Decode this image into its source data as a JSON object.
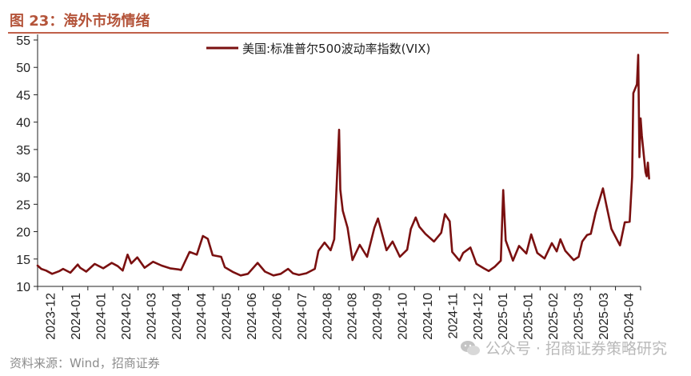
{
  "figure_title": "图 23：海外市场情绪",
  "source_note": "资料来源：Wind，招商证券",
  "watermark": "公众号 · 招商证券策略研究",
  "colors": {
    "title": "#b4543a",
    "line": "#7a1010",
    "rule": "#c0604a",
    "axis": "#222222"
  },
  "chart_data": {
    "type": "line",
    "legend_position": "top-center",
    "grid": false,
    "ylim": [
      10,
      55
    ],
    "yticks": [
      10,
      15,
      20,
      25,
      30,
      35,
      40,
      45,
      50,
      55
    ],
    "xticks": [
      "2023-12",
      "2024-01",
      "2024-01",
      "2024-02",
      "2024-03",
      "2024-04",
      "2024-04",
      "2024-05",
      "2024-06",
      "2024-06",
      "2024-07",
      "2024-08",
      "2024-08",
      "2024-09",
      "2024-10",
      "2024-10",
      "2024-11",
      "2024-12",
      "2025-01",
      "2025-01",
      "2025-02",
      "2025-03",
      "2025-03",
      "2025-04"
    ],
    "x_start": "2023-12-01",
    "x_end": "2025-04-10",
    "series": [
      {
        "name": "美国:标准普尔500波动率指数(VIX)",
        "points": [
          [
            "2023-12-01",
            13.8
          ],
          [
            "2023-12-04",
            13.2
          ],
          [
            "2023-12-08",
            12.9
          ],
          [
            "2023-12-13",
            12.3
          ],
          [
            "2023-12-19",
            12.8
          ],
          [
            "2023-12-22",
            13.2
          ],
          [
            "2023-12-28",
            12.5
          ],
          [
            "2024-01-03",
            14.0
          ],
          [
            "2024-01-05",
            13.4
          ],
          [
            "2024-01-10",
            12.7
          ],
          [
            "2024-01-17",
            14.1
          ],
          [
            "2024-01-24",
            13.3
          ],
          [
            "2024-01-31",
            14.3
          ],
          [
            "2024-02-05",
            13.7
          ],
          [
            "2024-02-09",
            12.9
          ],
          [
            "2024-02-13",
            15.8
          ],
          [
            "2024-02-16",
            14.2
          ],
          [
            "2024-02-21",
            15.3
          ],
          [
            "2024-02-27",
            13.4
          ],
          [
            "2024-03-05",
            14.5
          ],
          [
            "2024-03-12",
            13.8
          ],
          [
            "2024-03-19",
            13.3
          ],
          [
            "2024-03-26",
            13.1
          ],
          [
            "2024-03-28",
            13.0
          ],
          [
            "2024-04-04",
            16.3
          ],
          [
            "2024-04-10",
            15.8
          ],
          [
            "2024-04-15",
            19.2
          ],
          [
            "2024-04-19",
            18.7
          ],
          [
            "2024-04-23",
            15.7
          ],
          [
            "2024-04-30",
            15.4
          ],
          [
            "2024-05-03",
            13.5
          ],
          [
            "2024-05-10",
            12.6
          ],
          [
            "2024-05-16",
            12.0
          ],
          [
            "2024-05-22",
            12.3
          ],
          [
            "2024-05-30",
            14.3
          ],
          [
            "2024-06-05",
            12.7
          ],
          [
            "2024-06-12",
            12.0
          ],
          [
            "2024-06-18",
            12.3
          ],
          [
            "2024-06-24",
            13.2
          ],
          [
            "2024-06-28",
            12.4
          ],
          [
            "2024-07-03",
            12.1
          ],
          [
            "2024-07-09",
            12.4
          ],
          [
            "2024-07-16",
            13.2
          ],
          [
            "2024-07-19",
            16.5
          ],
          [
            "2024-07-24",
            18.0
          ],
          [
            "2024-07-29",
            16.6
          ],
          [
            "2024-08-01",
            18.6
          ],
          [
            "2024-08-02",
            23.4
          ],
          [
            "2024-08-05",
            38.6
          ],
          [
            "2024-08-06",
            27.7
          ],
          [
            "2024-08-08",
            23.8
          ],
          [
            "2024-08-12",
            20.7
          ],
          [
            "2024-08-16",
            14.8
          ],
          [
            "2024-08-22",
            17.6
          ],
          [
            "2024-08-28",
            15.4
          ],
          [
            "2024-09-03",
            20.7
          ],
          [
            "2024-09-06",
            22.4
          ],
          [
            "2024-09-10",
            19.1
          ],
          [
            "2024-09-13",
            16.6
          ],
          [
            "2024-09-18",
            18.2
          ],
          [
            "2024-09-24",
            15.4
          ],
          [
            "2024-09-30",
            16.7
          ],
          [
            "2024-10-03",
            20.5
          ],
          [
            "2024-10-07",
            22.6
          ],
          [
            "2024-10-10",
            20.9
          ],
          [
            "2024-10-15",
            19.6
          ],
          [
            "2024-10-22",
            18.2
          ],
          [
            "2024-10-28",
            19.8
          ],
          [
            "2024-10-31",
            23.2
          ],
          [
            "2024-11-04",
            21.9
          ],
          [
            "2024-11-06",
            16.3
          ],
          [
            "2024-11-12",
            14.7
          ],
          [
            "2024-11-15",
            16.1
          ],
          [
            "2024-11-21",
            17.1
          ],
          [
            "2024-11-26",
            14.1
          ],
          [
            "2024-12-02",
            13.3
          ],
          [
            "2024-12-06",
            12.8
          ],
          [
            "2024-12-11",
            13.6
          ],
          [
            "2024-12-16",
            14.7
          ],
          [
            "2024-12-18",
            27.6
          ],
          [
            "2024-12-20",
            18.4
          ],
          [
            "2024-12-26",
            14.7
          ],
          [
            "2024-12-31",
            17.4
          ],
          [
            "2025-01-06",
            16.0
          ],
          [
            "2025-01-10",
            19.5
          ],
          [
            "2025-01-15",
            16.1
          ],
          [
            "2025-01-21",
            15.1
          ],
          [
            "2025-01-27",
            17.9
          ],
          [
            "2025-01-31",
            16.4
          ],
          [
            "2025-02-03",
            18.6
          ],
          [
            "2025-02-07",
            16.5
          ],
          [
            "2025-02-14",
            14.8
          ],
          [
            "2025-02-18",
            15.4
          ],
          [
            "2025-02-21",
            18.2
          ],
          [
            "2025-02-25",
            19.4
          ],
          [
            "2025-02-28",
            19.6
          ],
          [
            "2025-03-04",
            23.5
          ],
          [
            "2025-03-10",
            27.9
          ],
          [
            "2025-03-13",
            24.7
          ],
          [
            "2025-03-17",
            20.5
          ],
          [
            "2025-03-24",
            17.5
          ],
          [
            "2025-03-28",
            21.7
          ],
          [
            "2025-04-01",
            21.8
          ],
          [
            "2025-04-03",
            30.0
          ],
          [
            "2025-04-04",
            45.3
          ],
          [
            "2025-04-07",
            46.9
          ],
          [
            "2025-04-08",
            52.3
          ],
          [
            "2025-04-09",
            33.6
          ],
          [
            "2025-04-10",
            40.7
          ],
          [
            "2025-04-11",
            37.6
          ],
          [
            "2025-04-14",
            30.9
          ],
          [
            "2025-04-15",
            30.1
          ],
          [
            "2025-04-16",
            32.6
          ],
          [
            "2025-04-17",
            29.7
          ]
        ]
      }
    ]
  }
}
